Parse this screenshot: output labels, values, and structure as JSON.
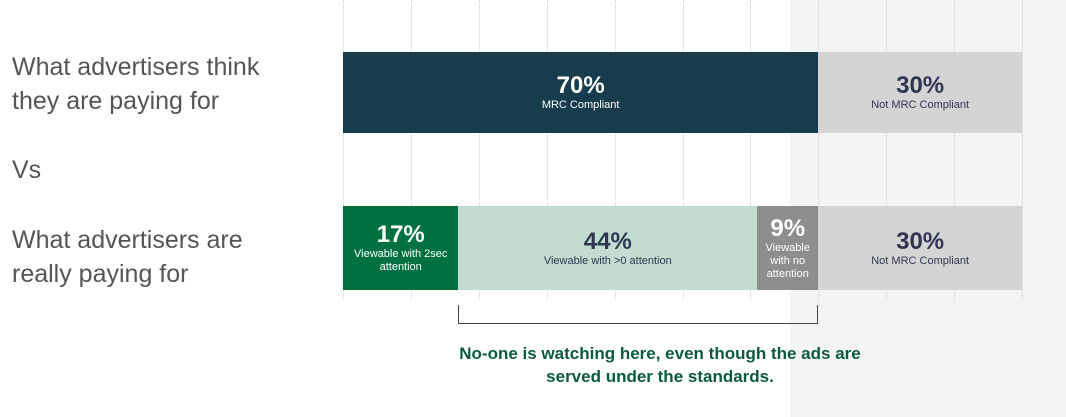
{
  "labels": {
    "top": "What advertisers think they are paying for",
    "vs": "Vs",
    "bottom": "What advertisers are really paying for"
  },
  "note": "No-one is watching here, even though the ads are served under the standards.",
  "chart_data": {
    "type": "bar",
    "orientation": "horizontal",
    "stacked": true,
    "xlim": [
      0,
      100
    ],
    "grid": true,
    "bars": [
      {
        "category": "What advertisers think they are paying for",
        "segments": [
          {
            "value": 70,
            "label": "70%",
            "name": "MRC Compliant",
            "color": "#173c4b",
            "text_color": "#ffffff"
          },
          {
            "value": 30,
            "label": "30%",
            "name": "Not MRC Compliant",
            "color": "#d4d4d4",
            "text_color": "#2e3650"
          }
        ]
      },
      {
        "category": "What advertisers are really paying for",
        "segments": [
          {
            "value": 17,
            "label": "17%",
            "name": "Viewable with 2sec attention",
            "color": "#007241",
            "text_color": "#ffffff"
          },
          {
            "value": 44,
            "label": "44%",
            "name": "Viewable with >0 attention",
            "color": "#c0ddd0",
            "text_color": "#2e3650"
          },
          {
            "value": 9,
            "label": "9%",
            "name": "Viewable with no attention",
            "color": "#8e8e8e",
            "text_color": "#ffffff"
          },
          {
            "value": 30,
            "label": "30%",
            "name": "Not MRC Compliant",
            "color": "#d4d4d4",
            "text_color": "#2e3650"
          }
        ]
      }
    ],
    "bracket_range": [
      17,
      70
    ]
  }
}
